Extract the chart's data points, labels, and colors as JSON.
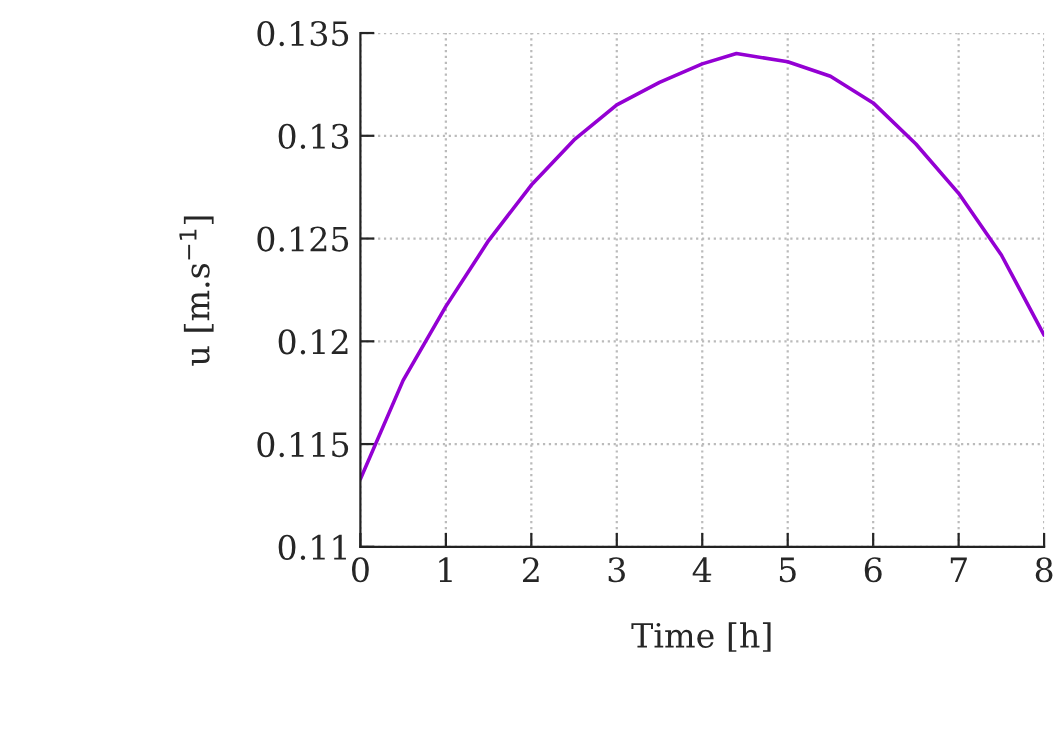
{
  "chart_data": {
    "type": "line",
    "xlabel": "Time [h]",
    "ylabel": "u [m.s$^{−1}$]",
    "x": [
      0,
      0.5,
      1,
      1.5,
      2,
      2.5,
      3,
      3.5,
      4,
      4.4,
      5,
      5.5,
      6,
      6.5,
      7,
      7.5,
      8
    ],
    "series": [
      {
        "color": "#9400d3",
        "values": [
          0.1133,
          0.1181,
          0.1217,
          0.1249,
          0.1276,
          0.1298,
          0.1315,
          0.1326,
          0.1335,
          0.134,
          0.1336,
          0.1329,
          0.1316,
          0.1296,
          0.1272,
          0.1242,
          0.1203
        ]
      }
    ],
    "xlim": [
      0,
      8
    ],
    "xticks": [
      0,
      1,
      2,
      3,
      4,
      5,
      6,
      7,
      8
    ],
    "ylim": [
      0.11,
      0.135
    ],
    "yticks": [
      0.11,
      0.115,
      0.12,
      0.125,
      0.13,
      0.135
    ],
    "grid": true,
    "line_style": "solid",
    "marker": "none"
  }
}
